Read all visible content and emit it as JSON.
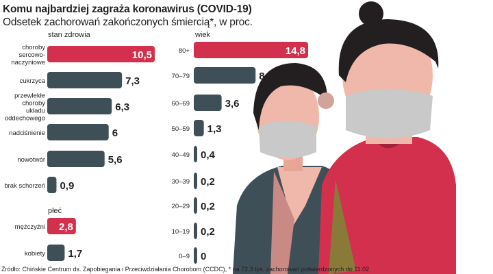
{
  "header": {
    "title": "Komu najbardziej zagraża koronawirus (COVID-19)",
    "subtitle": "Odsetek zachorowań zakończonych śmiercią*, w proc."
  },
  "footer": {
    "source": "Źródło: Chińskie Centrum ds. Zapobiegania i Przeciwdziałania Chorobom (CCDC), * na 72,3 tys. zachorowań potwierdzonych do 11.02"
  },
  "colors": {
    "highlight": "#d3304d",
    "default": "#3e4f57",
    "text": "#231f20"
  },
  "chart_data": [
    {
      "type": "bar",
      "orientation": "horizontal",
      "title": "stan zdrowia",
      "categories": [
        "choroby sercowo-naczyniowe",
        "cukrzyca",
        "przewlekłe choroby układu oddechowego",
        "nadciśnienie",
        "nowotwór",
        "brak schorzeń"
      ],
      "values": [
        10.5,
        7.3,
        6.3,
        6,
        5.6,
        0.9
      ],
      "value_labels": [
        "10,5",
        "7,3",
        "6,3",
        "6",
        "5,6",
        "0,9"
      ],
      "highlight_index": 0,
      "grid": false
    },
    {
      "type": "bar",
      "orientation": "horizontal",
      "title": "płeć",
      "categories": [
        "mężczyźni",
        "kobiety"
      ],
      "values": [
        2.8,
        1.7
      ],
      "value_labels": [
        "2,8",
        "1,7"
      ],
      "highlight_index": 0,
      "grid": false
    },
    {
      "type": "bar",
      "orientation": "horizontal",
      "title": "wiek",
      "categories": [
        "80+",
        "70–79",
        "60–69",
        "50–59",
        "40–49",
        "30–39",
        "20–29",
        "10–19",
        "0–9"
      ],
      "values": [
        14.8,
        8,
        3.6,
        1.3,
        0.4,
        0.2,
        0.2,
        0.2,
        0
      ],
      "value_labels": [
        "14,8",
        "8",
        "3,6",
        "1,3",
        "0,4",
        "0,2",
        "0,2",
        "0,2",
        "0"
      ],
      "highlight_index": 0,
      "grid": false
    }
  ]
}
